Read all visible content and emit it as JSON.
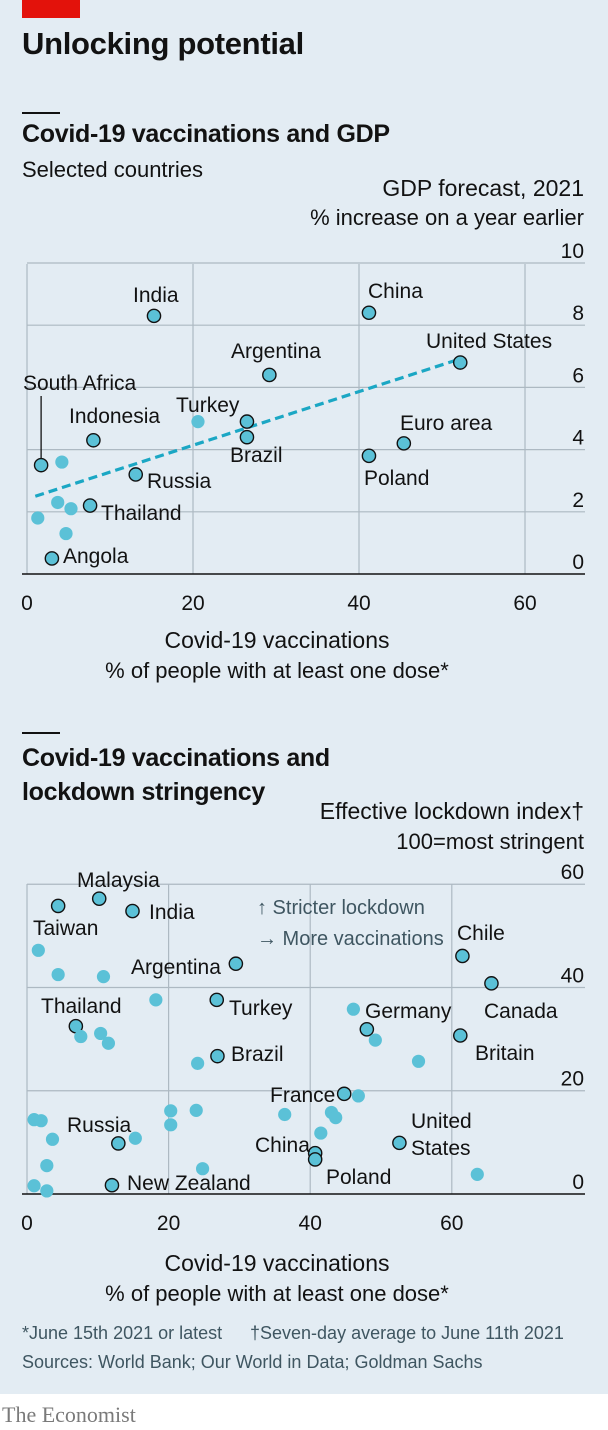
{
  "title": "Unlocking potential",
  "chart_data": [
    {
      "type": "scatter",
      "title": "Covid-19 vaccinations and GDP",
      "subtitle": "Selected countries",
      "ylabel": "GDP forecast, 2021",
      "ylabel_sub": "% increase on a year earlier",
      "xlabel": "Covid-19 vaccinations",
      "xlabel_sub": "% of people with at least one dose*",
      "xlim": [
        0,
        66
      ],
      "ylim": [
        0,
        10
      ],
      "xticks": [
        0,
        20,
        40,
        60
      ],
      "yticks": [
        0,
        2,
        4,
        6,
        8,
        10
      ],
      "trendline": {
        "x": [
          1,
          52
        ],
        "y": [
          2.5,
          6.9
        ]
      },
      "colors": {
        "point": "#5bc1d7",
        "trend": "#1ba7c4",
        "grid": "#adb9c2"
      },
      "points": [
        {
          "label": "India",
          "x": 15.3,
          "y": 8.3
        },
        {
          "label": "China",
          "x": 41.2,
          "y": 8.4
        },
        {
          "label": "United States",
          "x": 52.2,
          "y": 6.8
        },
        {
          "label": "Argentina",
          "x": 29.2,
          "y": 6.4
        },
        {
          "label": "South Africa",
          "x": 1.7,
          "y": 3.5
        },
        {
          "label": "",
          "x": 4.2,
          "y": 3.6
        },
        {
          "label": "Indonesia",
          "x": 8.0,
          "y": 4.3
        },
        {
          "label": "",
          "x": 20.6,
          "y": 4.9
        },
        {
          "label": "Turkey",
          "x": 26.5,
          "y": 4.9
        },
        {
          "label": "Brazil",
          "x": 26.5,
          "y": 4.4
        },
        {
          "label": "Euro area",
          "x": 45.4,
          "y": 4.2
        },
        {
          "label": "Poland",
          "x": 41.2,
          "y": 3.8
        },
        {
          "label": "Russia",
          "x": 13.1,
          "y": 3.2
        },
        {
          "label": "",
          "x": 3.7,
          "y": 2.3
        },
        {
          "label": "",
          "x": 5.3,
          "y": 2.1
        },
        {
          "label": "Thailand",
          "x": 7.6,
          "y": 2.2
        },
        {
          "label": "",
          "x": 1.3,
          "y": 1.8
        },
        {
          "label": "",
          "x": 4.7,
          "y": 1.3
        },
        {
          "label": "Angola",
          "x": 3.0,
          "y": 0.5
        }
      ]
    },
    {
      "type": "scatter",
      "title": "Covid-19 vaccinations and lockdown stringency",
      "ylabel": "Effective lockdown index†",
      "ylabel_sub": "100=most stringent",
      "xlabel": "Covid-19 vaccinations",
      "xlabel_sub": "% of people with at least one dose*",
      "xlim": [
        0,
        66
      ],
      "ylim": [
        0,
        60
      ],
      "xticks": [
        0,
        20,
        40,
        60
      ],
      "yticks": [
        0,
        20,
        40,
        60
      ],
      "annotations": [
        "↑ Stricter lockdown",
        "→ More vaccinations"
      ],
      "colors": {
        "point": "#5bc1d7",
        "grid": "#adb9c2"
      },
      "points": [
        {
          "label": "Malaysia",
          "x": 10.2,
          "y": 57.2
        },
        {
          "label": "Taiwan",
          "x": 4.4,
          "y": 55.8
        },
        {
          "label": "India",
          "x": 14.9,
          "y": 54.8
        },
        {
          "label": "",
          "x": 1.6,
          "y": 47.2
        },
        {
          "label": "Argentina",
          "x": 29.5,
          "y": 44.6
        },
        {
          "label": "Chile",
          "x": 61.5,
          "y": 46.1
        },
        {
          "label": "",
          "x": 4.4,
          "y": 42.5
        },
        {
          "label": "",
          "x": 10.8,
          "y": 42.1
        },
        {
          "label": "Canada",
          "x": 65.6,
          "y": 40.8
        },
        {
          "label": "",
          "x": 18.2,
          "y": 37.6
        },
        {
          "label": "Turkey",
          "x": 26.8,
          "y": 37.6
        },
        {
          "label": "",
          "x": 46.1,
          "y": 35.8
        },
        {
          "label": "Germany",
          "x": 48.0,
          "y": 31.9
        },
        {
          "label": "",
          "x": 49.2,
          "y": 29.8
        },
        {
          "label": "Thailand",
          "x": 6.9,
          "y": 32.5
        },
        {
          "label": "",
          "x": 7.6,
          "y": 30.5
        },
        {
          "label": "",
          "x": 10.4,
          "y": 31.1
        },
        {
          "label": "",
          "x": 11.5,
          "y": 29.2
        },
        {
          "label": "Britain",
          "x": 61.2,
          "y": 30.7
        },
        {
          "label": "Brazil",
          "x": 26.9,
          "y": 26.7
        },
        {
          "label": "",
          "x": 24.1,
          "y": 25.3
        },
        {
          "label": "",
          "x": 55.3,
          "y": 25.7
        },
        {
          "label": "France",
          "x": 44.8,
          "y": 19.4
        },
        {
          "label": "",
          "x": 46.8,
          "y": 19.0
        },
        {
          "label": "",
          "x": 1.0,
          "y": 14.4
        },
        {
          "label": "",
          "x": 2.0,
          "y": 14.2
        },
        {
          "label": "",
          "x": 20.3,
          "y": 16.1
        },
        {
          "label": "",
          "x": 23.9,
          "y": 16.2
        },
        {
          "label": "",
          "x": 36.4,
          "y": 15.4
        },
        {
          "label": "",
          "x": 43.0,
          "y": 15.8
        },
        {
          "label": "",
          "x": 43.6,
          "y": 14.8
        },
        {
          "label": "",
          "x": 20.3,
          "y": 13.4
        },
        {
          "label": "",
          "x": 3.6,
          "y": 10.6
        },
        {
          "label": "Russia",
          "x": 12.9,
          "y": 9.8
        },
        {
          "label": "",
          "x": 15.3,
          "y": 10.8
        },
        {
          "label": "",
          "x": 41.5,
          "y": 11.8
        },
        {
          "label": "United States",
          "x": 52.6,
          "y": 9.9
        },
        {
          "label": "China",
          "x": 40.7,
          "y": 7.9
        },
        {
          "label": "Poland",
          "x": 40.7,
          "y": 6.7
        },
        {
          "label": "",
          "x": 2.8,
          "y": 5.5
        },
        {
          "label": "",
          "x": 24.8,
          "y": 4.9
        },
        {
          "label": "",
          "x": 63.6,
          "y": 3.8
        },
        {
          "label": "",
          "x": 1.0,
          "y": 1.6
        },
        {
          "label": "New Zealand",
          "x": 12.0,
          "y": 1.7
        },
        {
          "label": "",
          "x": 2.8,
          "y": 0.6
        }
      ]
    }
  ],
  "footnote": {
    "note1": "*June 15th 2021 or latest",
    "note2": "†Seven-day average to June 11th 2021",
    "sources": "Sources: World Bank; Our World in Data; Goldman Sachs"
  },
  "brand": "The Economist"
}
